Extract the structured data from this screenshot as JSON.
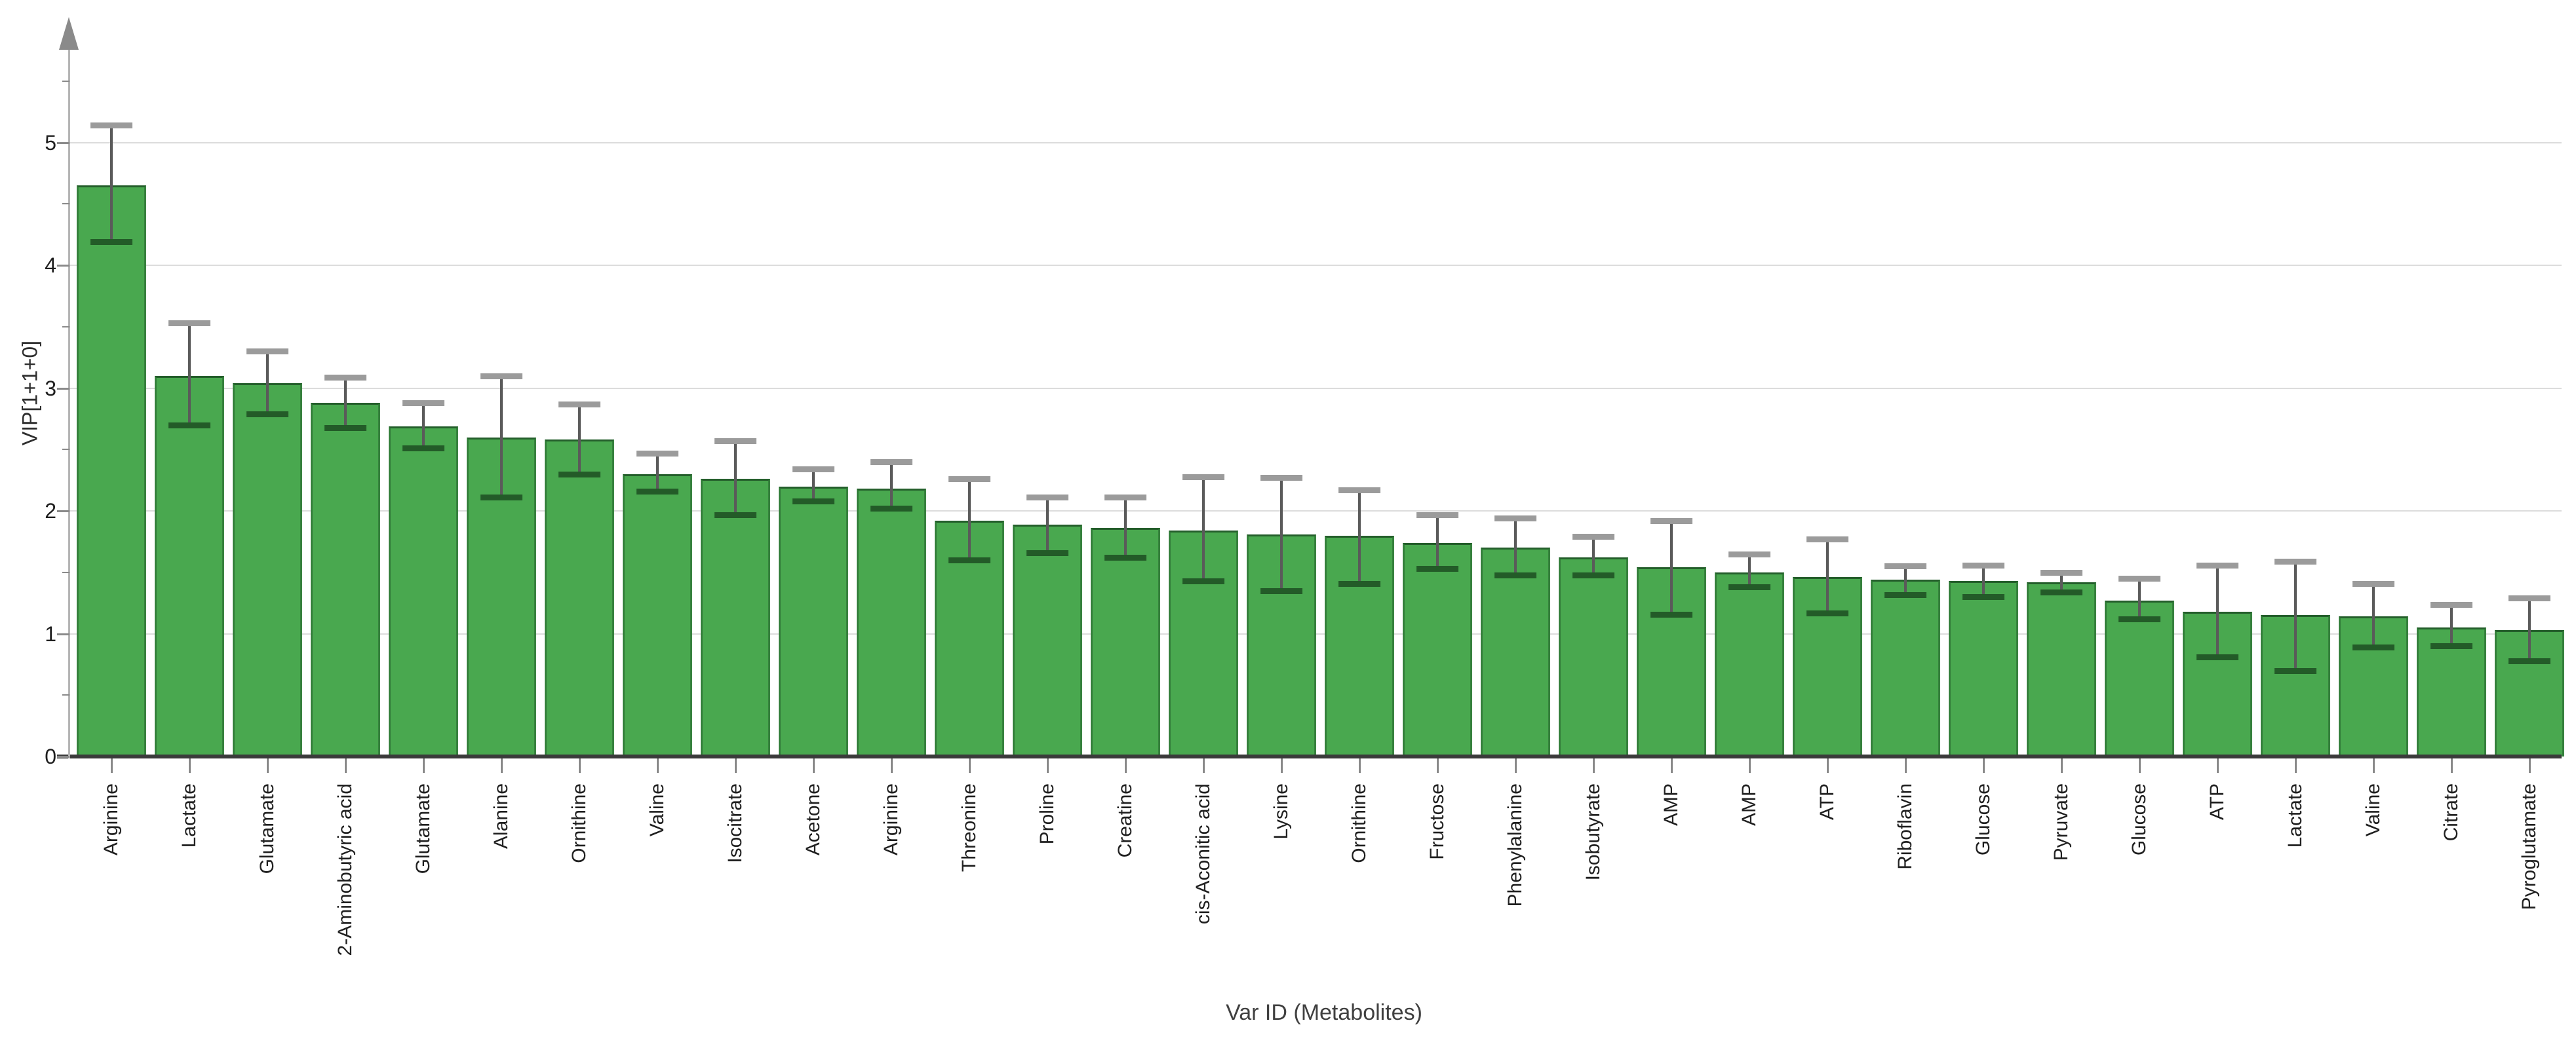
{
  "chart_data": {
    "type": "bar",
    "title": "",
    "xlabel": "Var ID (Metabolites)",
    "ylabel": "VIP[1+1+0]",
    "ylim": [
      0,
      5.6
    ],
    "yticks": [
      0,
      1,
      2,
      3,
      4,
      5
    ],
    "minor_ytick_step": 0.5,
    "grid": "horizontal",
    "legend_position": "none",
    "bar_orientation": "vertical",
    "error_bars": true,
    "categories": [
      "Arginine",
      "Lactate",
      "Glutamate",
      "2-Aminobutyric acid",
      "Glutamate",
      "Alanine",
      "Ornithine",
      "Valine",
      "Isocitrate",
      "Acetone",
      "Arginine",
      "Threonine",
      "Proline",
      "Creatine",
      "cis-Aconitic acid",
      "Lysine",
      "Ornithine",
      "Fructose",
      "Phenylalanine",
      "Isobutyrate",
      "AMP",
      "AMP",
      "ATP",
      "Riboflavin",
      "Glucose",
      "Pyruvate",
      "Glucose",
      "ATP",
      "Lactate",
      "Valine",
      "Citrate",
      "Pyroglutamate"
    ],
    "values": [
      4.65,
      3.1,
      3.04,
      2.88,
      2.69,
      2.6,
      2.58,
      2.3,
      2.26,
      2.2,
      2.18,
      1.92,
      1.89,
      1.86,
      1.84,
      1.81,
      1.8,
      1.74,
      1.7,
      1.62,
      1.54,
      1.5,
      1.46,
      1.44,
      1.43,
      1.42,
      1.27,
      1.18,
      1.15,
      1.14,
      1.05,
      1.03
    ],
    "error_low": [
      4.19,
      2.7,
      2.79,
      2.68,
      2.51,
      2.11,
      2.3,
      2.16,
      1.97,
      2.08,
      2.02,
      1.6,
      1.66,
      1.62,
      1.43,
      1.35,
      1.41,
      1.53,
      1.48,
      1.48,
      1.16,
      1.38,
      1.17,
      1.32,
      1.3,
      1.34,
      1.12,
      0.81,
      0.7,
      0.89,
      0.9,
      0.78
    ],
    "error_high": [
      5.14,
      3.53,
      3.3,
      3.09,
      2.88,
      3.1,
      2.87,
      2.47,
      2.57,
      2.34,
      2.4,
      2.26,
      2.11,
      2.11,
      2.28,
      2.27,
      2.17,
      1.97,
      1.94,
      1.79,
      1.92,
      1.65,
      1.77,
      1.55,
      1.56,
      1.5,
      1.45,
      1.56,
      1.59,
      1.41,
      1.24,
      1.29
    ],
    "colors": {
      "bar_fill": "#49a84f",
      "bar_border": "#35803c",
      "bar_border_top": "#245e2b",
      "error_line": "#5a5a5a",
      "error_cap_top": "#9b9b9b",
      "error_cap_bottom": "#235b28",
      "gridline": "#dcdcdc",
      "axis_line": "#b5b5b5",
      "baseline": "#3a3a3a",
      "tick": "#8a8a8a",
      "tick_label": "#1f1f1f",
      "axis_title": "#404040",
      "background": "#ffffff"
    }
  }
}
